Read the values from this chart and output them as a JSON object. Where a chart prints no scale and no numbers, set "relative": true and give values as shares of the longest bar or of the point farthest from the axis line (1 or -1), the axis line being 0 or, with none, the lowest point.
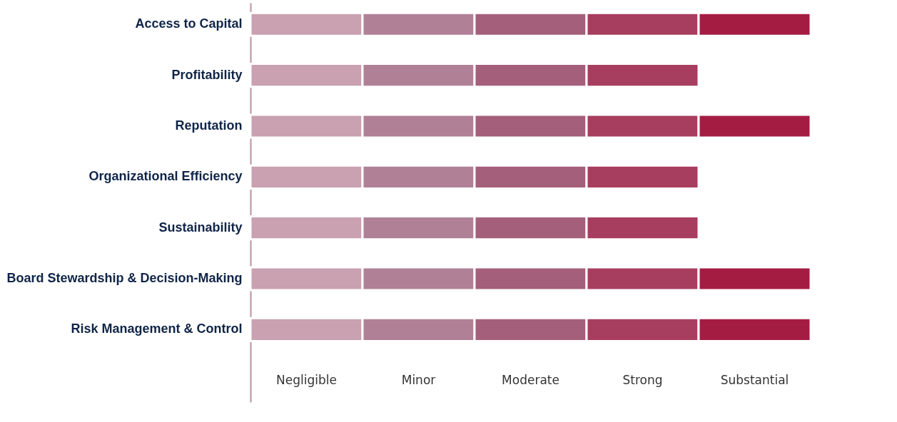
{
  "chart_data": {
    "type": "bar",
    "orientation": "horizontal",
    "stacked": true,
    "relative": true,
    "categories": [
      "Access to Capital",
      "Profitability",
      "Reputation",
      "Organizational Efficiency",
      "Sustainability",
      "Board Stewardship & Decision-Making",
      "Risk Management & Control"
    ],
    "series": [
      {
        "name": "Negligible",
        "color": "#c9a1b0",
        "values": [
          0.2,
          0.2,
          0.2,
          0.2,
          0.2,
          0.2,
          0.2
        ]
      },
      {
        "name": "Minor",
        "color": "#b08096",
        "values": [
          0.2,
          0.2,
          0.2,
          0.2,
          0.2,
          0.2,
          0.2
        ]
      },
      {
        "name": "Moderate",
        "color": "#a45f7b",
        "values": [
          0.2,
          0.2,
          0.2,
          0.2,
          0.2,
          0.2,
          0.2
        ]
      },
      {
        "name": "Strong",
        "color": "#a73d5f",
        "values": [
          0.2,
          0.2,
          0.2,
          0.2,
          0.2,
          0.2,
          0.2
        ]
      },
      {
        "name": "Substantial",
        "color": "#a51c43",
        "values": [
          0.2,
          null,
          0.2,
          null,
          null,
          0.2,
          0.2
        ]
      }
    ]
  }
}
